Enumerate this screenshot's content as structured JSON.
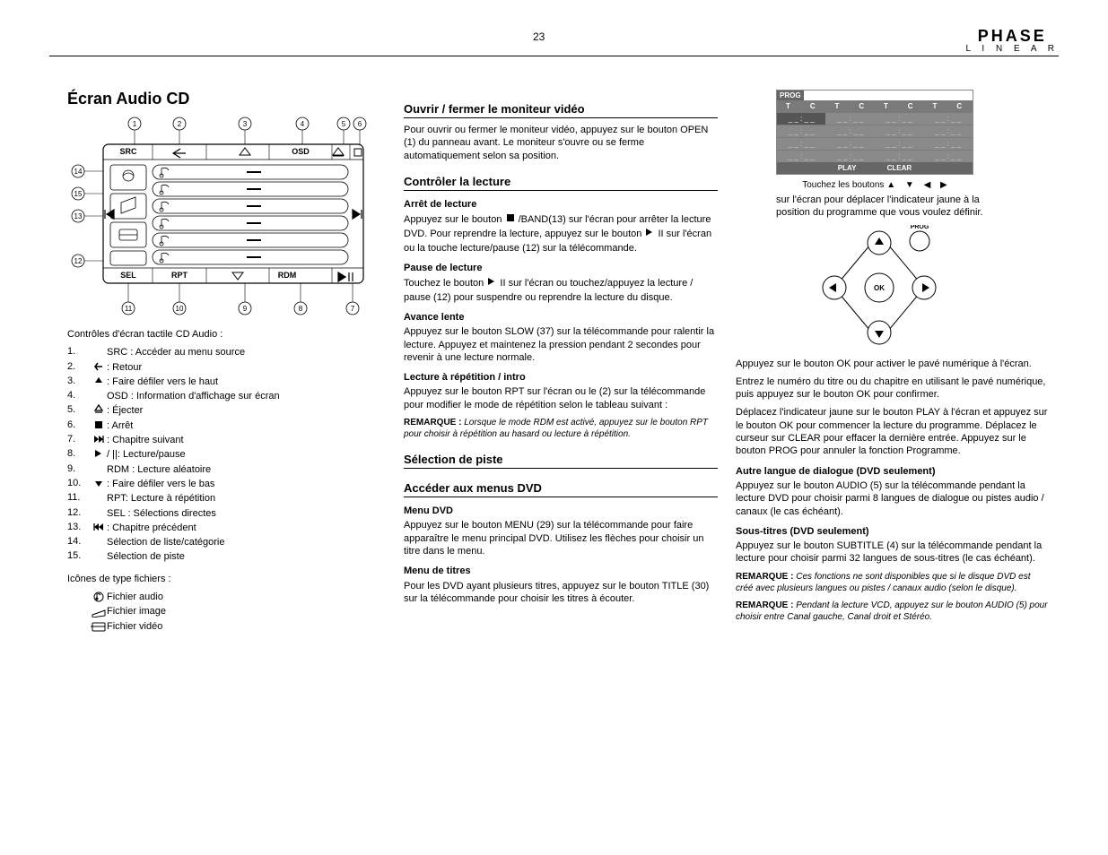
{
  "page_number": "23",
  "brand": {
    "line1": "PHASE",
    "line2": "L I N E A R"
  },
  "col1": {
    "title": "Écran Audio CD",
    "panel": {
      "top_labels": [
        "SRC",
        "",
        "",
        "OSD",
        ""
      ],
      "bot_labels": [
        "SEL",
        "RPT",
        "",
        "RDM",
        ""
      ],
      "callouts": [
        "1",
        "2",
        "3",
        "4",
        "5",
        "6",
        "7",
        "8",
        "9",
        "10",
        "11",
        "12",
        "13",
        "14",
        "15"
      ],
      "track_lines": 6
    },
    "controls_heading": "Contrôles d'écran tactile CD Audio :",
    "controls": [
      {
        "num": "1.",
        "icon": "",
        "txt": "SRC : Accéder au menu source"
      },
      {
        "num": "2.",
        "icon": "back",
        "txt": ": Retour"
      },
      {
        "num": "3.",
        "icon": "up",
        "txt": ": Faire défiler vers le haut"
      },
      {
        "num": "4.",
        "icon": "",
        "txt": "OSD : Information d'affichage sur écran"
      },
      {
        "num": "5.",
        "icon": "eject",
        "txt": ": Éjecter"
      },
      {
        "num": "6.",
        "icon": "stop",
        "txt": ": Arrêt"
      },
      {
        "num": "7.",
        "icon": "fwd",
        "txt": ": Chapitre suivant"
      },
      {
        "num": "8.",
        "icon": "play",
        "txt": "/ ||: Lecture/pause"
      },
      {
        "num": "9.",
        "icon": "",
        "txt": "RDM : Lecture aléatoire"
      },
      {
        "num": "10.",
        "icon": "down",
        "txt": ": Faire défiler vers le bas"
      },
      {
        "num": "11.",
        "icon": "",
        "txt": "RPT: Lecture à répétition"
      },
      {
        "num": "12.",
        "icon": "",
        "txt": "SEL : Sélections directes"
      },
      {
        "num": "13.",
        "icon": "prev",
        "txt": ": Chapitre précédent"
      },
      {
        "num": "14.",
        "icon": "",
        "txt": "Sélection de liste/catégorie"
      },
      {
        "num": "15.",
        "icon": "",
        "txt": "Sélection de piste"
      }
    ],
    "filetype_heading": "Icônes de type fichiers :",
    "filetypes": [
      {
        "icon": "music",
        "txt": "Fichier audio"
      },
      {
        "icon": "image",
        "txt": "Fichier image"
      },
      {
        "icon": "video",
        "txt": "Fichier vidéo"
      }
    ]
  },
  "col2": {
    "blocks": [
      {
        "title": "Ouvrir / fermer le moniteur vidéo",
        "body": [
          "Pour ouvrir ou fermer le moniteur vidéo, appuyez sur le bouton OPEN (1) du panneau avant. Le moniteur s'ouvre ou se ferme automatiquement selon sa position."
        ]
      },
      {
        "title": "Contrôler la lecture",
        "body": [
          "Arrêt de lecture",
          "Appuyez sur le bouton    /BAND(13) sur l'écran pour arrêter la lecture DVD. Pour reprendre la lecture, appuyez sur le bouton   II sur l'écran ou la touche lecture/pause (12) sur la télécommande.",
          "Pause de lecture",
          "Touchez le bouton   II sur l'écran ou touchez/appuyez la lecture / pause (12) pour suspendre ou reprendre la lecture du disque.",
          "Avance lente",
          "Appuyez sur le bouton SLOW (37) sur la télécommande pour ralentir la lecture. Appuyez et maintenez la pression pendant 2 secondes pour revenir à une lecture normale.",
          "Lecture à répétition / intro",
          "Appuyez sur le bouton RPT sur l'écran ou le (2) sur la télécommande pour modifier le mode de répétition selon le tableau suivant :"
        ],
        "note_label": "REMARQUE :",
        "note": "Lorsque le mode RDM est activé, appuyez sur le bouton RPT pour choisir à répétition au hasard ou lecture à répétition."
      },
      {
        "title": "Sélection de piste",
        "body": []
      },
      {
        "title": "Accéder aux menus DVD",
        "body": [
          "Menu DVD",
          "Appuyez sur le bouton MENU (29) sur la télécommande pour faire apparaître le menu principal DVD. Utilisez les flèches pour choisir un titre dans le menu.",
          "Menu de titres",
          "Pour les DVD ayant plusieurs titres, appuyez sur le bouton TITLE (30) sur la télécommande pour choisir les titres à écouter."
        ]
      }
    ]
  },
  "col3": {
    "prog": {
      "header": "PROG",
      "cols": [
        "T",
        "C",
        "T",
        "C",
        "T",
        "C",
        "T",
        "C"
      ],
      "cell": "_ _ : _ _",
      "rows": 4,
      "play": "PLAY",
      "clear": "CLEAR"
    },
    "arrow_instr_pre": "Touchez les boutons ",
    "arrow_instr_post": " sur l'écran pour déplacer l'indicateur jaune à la position du programme que vous voulez définir.",
    "dpad": {
      "ok": "OK",
      "prog": "PROG"
    },
    "body": [
      "Appuyez sur le bouton OK pour activer le pavé numérique à l'écran.",
      "Entrez le numéro du titre ou du chapitre en utilisant le pavé numérique, puis appuyez sur le bouton OK pour confirmer.",
      "Déplacez l'indicateur jaune sur le bouton PLAY à l'écran et appuyez sur le bouton OK pour commencer la lecture du programme. Déplacez le curseur sur CLEAR pour effacer la dernière entrée. Appuyez sur le bouton PROG pour annuler la fonction Programme.",
      "Autre langue de dialogue (DVD seulement)",
      "Appuyez sur le bouton AUDIO (5) sur la télécommande pendant la lecture DVD pour choisir parmi 8 langues de dialogue ou pistes audio / canaux (le cas échéant).",
      "Sous-titres (DVD seulement)",
      "Appuyez sur le bouton SUBTITLE (4) sur la télécommande pendant la lecture pour choisir parmi 32 langues de sous-titres (le cas échéant)."
    ],
    "notes": [
      {
        "label": "REMARQUE :",
        "txt": "Ces fonctions ne sont disponibles que si le disque DVD est créé avec plusieurs langues ou pistes / canaux audio (selon le disque)."
      },
      {
        "label": "REMARQUE :",
        "txt": "Pendant la lecture VCD, appuyez sur le bouton AUDIO (5) pour choisir entre Canal gauche, Canal droit et Stéréo."
      }
    ]
  },
  "colors": {
    "text": "#000000",
    "gray_panel": "#8a8a8a",
    "gray_dark": "#666666",
    "white": "#ffffff",
    "line": "#000000"
  }
}
